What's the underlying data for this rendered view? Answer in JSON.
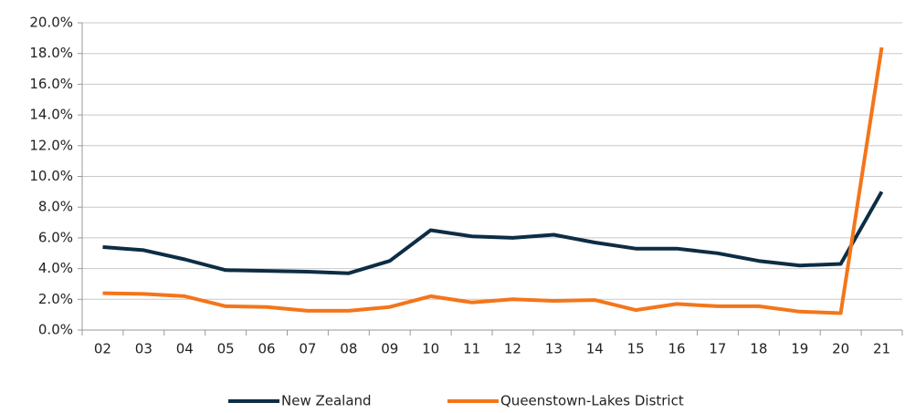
{
  "chart_data": {
    "type": "line",
    "categories": [
      "02",
      "03",
      "04",
      "05",
      "06",
      "07",
      "08",
      "09",
      "10",
      "11",
      "12",
      "13",
      "14",
      "15",
      "16",
      "17",
      "18",
      "19",
      "20",
      "21"
    ],
    "series": [
      {
        "name": "New Zealand",
        "color": "#0d2d44",
        "values": [
          5.4,
          5.2,
          4.6,
          3.9,
          3.85,
          3.8,
          3.7,
          4.5,
          6.5,
          6.1,
          6.0,
          6.2,
          5.7,
          5.3,
          5.3,
          5.0,
          4.5,
          4.2,
          4.3,
          9.0
        ]
      },
      {
        "name": "Queenstown-Lakes District",
        "color": "#f4751a",
        "values": [
          2.4,
          2.35,
          2.2,
          1.55,
          1.5,
          1.25,
          1.25,
          1.5,
          2.2,
          1.8,
          2.0,
          1.9,
          1.95,
          1.3,
          1.7,
          1.55,
          1.55,
          1.2,
          1.1,
          18.4
        ]
      }
    ],
    "ylim": [
      0,
      20
    ],
    "yticks": [
      {
        "value": 0,
        "label": "0.0%"
      },
      {
        "value": 2,
        "label": "2.0%"
      },
      {
        "value": 4,
        "label": "4.0%"
      },
      {
        "value": 6,
        "label": "6.0%"
      },
      {
        "value": 8,
        "label": "8.0%"
      },
      {
        "value": 10,
        "label": "10.0%"
      },
      {
        "value": 12,
        "label": "12.0%"
      },
      {
        "value": 14,
        "label": "14.0%"
      },
      {
        "value": 16,
        "label": "16.0%"
      },
      {
        "value": 18,
        "label": "18.0%"
      },
      {
        "value": 20,
        "label": "20.0%"
      }
    ],
    "grid": true,
    "legend": "bottom"
  }
}
